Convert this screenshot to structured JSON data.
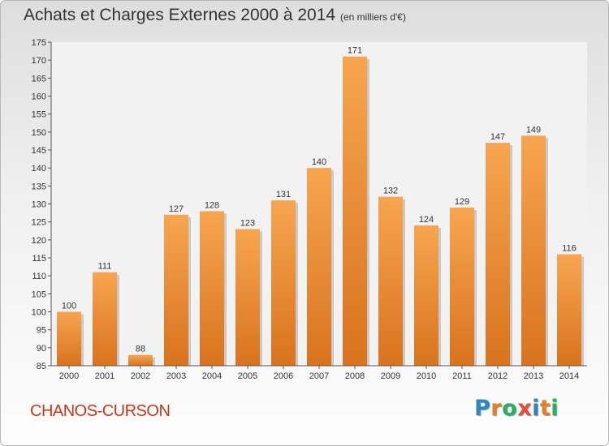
{
  "header": {
    "title": "Achats et Charges Externes 2000 à 2014",
    "subtitle": "(en milliers d'€)"
  },
  "footer": {
    "place": "CHANOS-CURSON",
    "logo_letters": [
      "P",
      "r",
      "o",
      "x",
      "i",
      "t",
      "i"
    ]
  },
  "colors": {
    "bar_light": "#f7a550",
    "bar_dark": "#d9731d",
    "label": "#333333",
    "place": "#c8371a",
    "logo": [
      "#2e86c1",
      "#e67e22",
      "#27ae60",
      "#e74c3c",
      "#2e86c1",
      "#e67e22",
      "#27ae60"
    ]
  },
  "chart_data": {
    "type": "bar",
    "title": "Achats et Charges Externes 2000 à 2014",
    "subtitle": "(en milliers d'€)",
    "categories": [
      "2000",
      "2001",
      "2002",
      "2003",
      "2004",
      "2005",
      "2006",
      "2007",
      "2008",
      "2009",
      "2010",
      "2011",
      "2012",
      "2013",
      "2014"
    ],
    "values": [
      100,
      111,
      88,
      127,
      128,
      123,
      131,
      140,
      171,
      132,
      124,
      129,
      147,
      149,
      116
    ],
    "ylim": [
      85,
      175
    ],
    "yticks": [
      85,
      90,
      95,
      100,
      105,
      110,
      115,
      120,
      125,
      130,
      135,
      140,
      145,
      150,
      155,
      160,
      165,
      170,
      175
    ],
    "grid": false,
    "xlabel": "",
    "ylabel": ""
  }
}
